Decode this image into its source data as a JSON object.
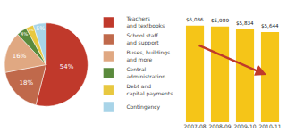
{
  "chart_data": [
    {
      "type": "pie",
      "categories": [
        "Teachers\nand textbooks",
        "School staff\nand support",
        "Buses, buildings\nand more",
        "Central\nadministration",
        "Debt and\ncapital payments",
        "Contingency"
      ],
      "values": [
        54,
        18,
        16,
        4,
        3,
        5
      ],
      "value_labels": [
        "54%",
        "18%",
        "16%",
        "4%",
        "3%",
        "5%"
      ],
      "colors": [
        "#c0392b",
        "#c0694b",
        "#e0a882",
        "#5a8a3c",
        "#e8c840",
        "#a8d4e8"
      ],
      "data_labels": true,
      "legend": "right"
    },
    {
      "type": "bar",
      "categories": [
        "2007-08",
        "2008-09",
        "2009-10",
        "2010-11"
      ],
      "values": [
        6036,
        5989,
        5834,
        5644
      ],
      "value_labels": [
        "$6,036",
        "$5,989",
        "$5,834",
        "$5,644"
      ],
      "color": "#f5c518",
      "ylim": [
        0,
        7200
      ],
      "data_labels": true,
      "tick_labels": "x",
      "grid": false
    }
  ]
}
